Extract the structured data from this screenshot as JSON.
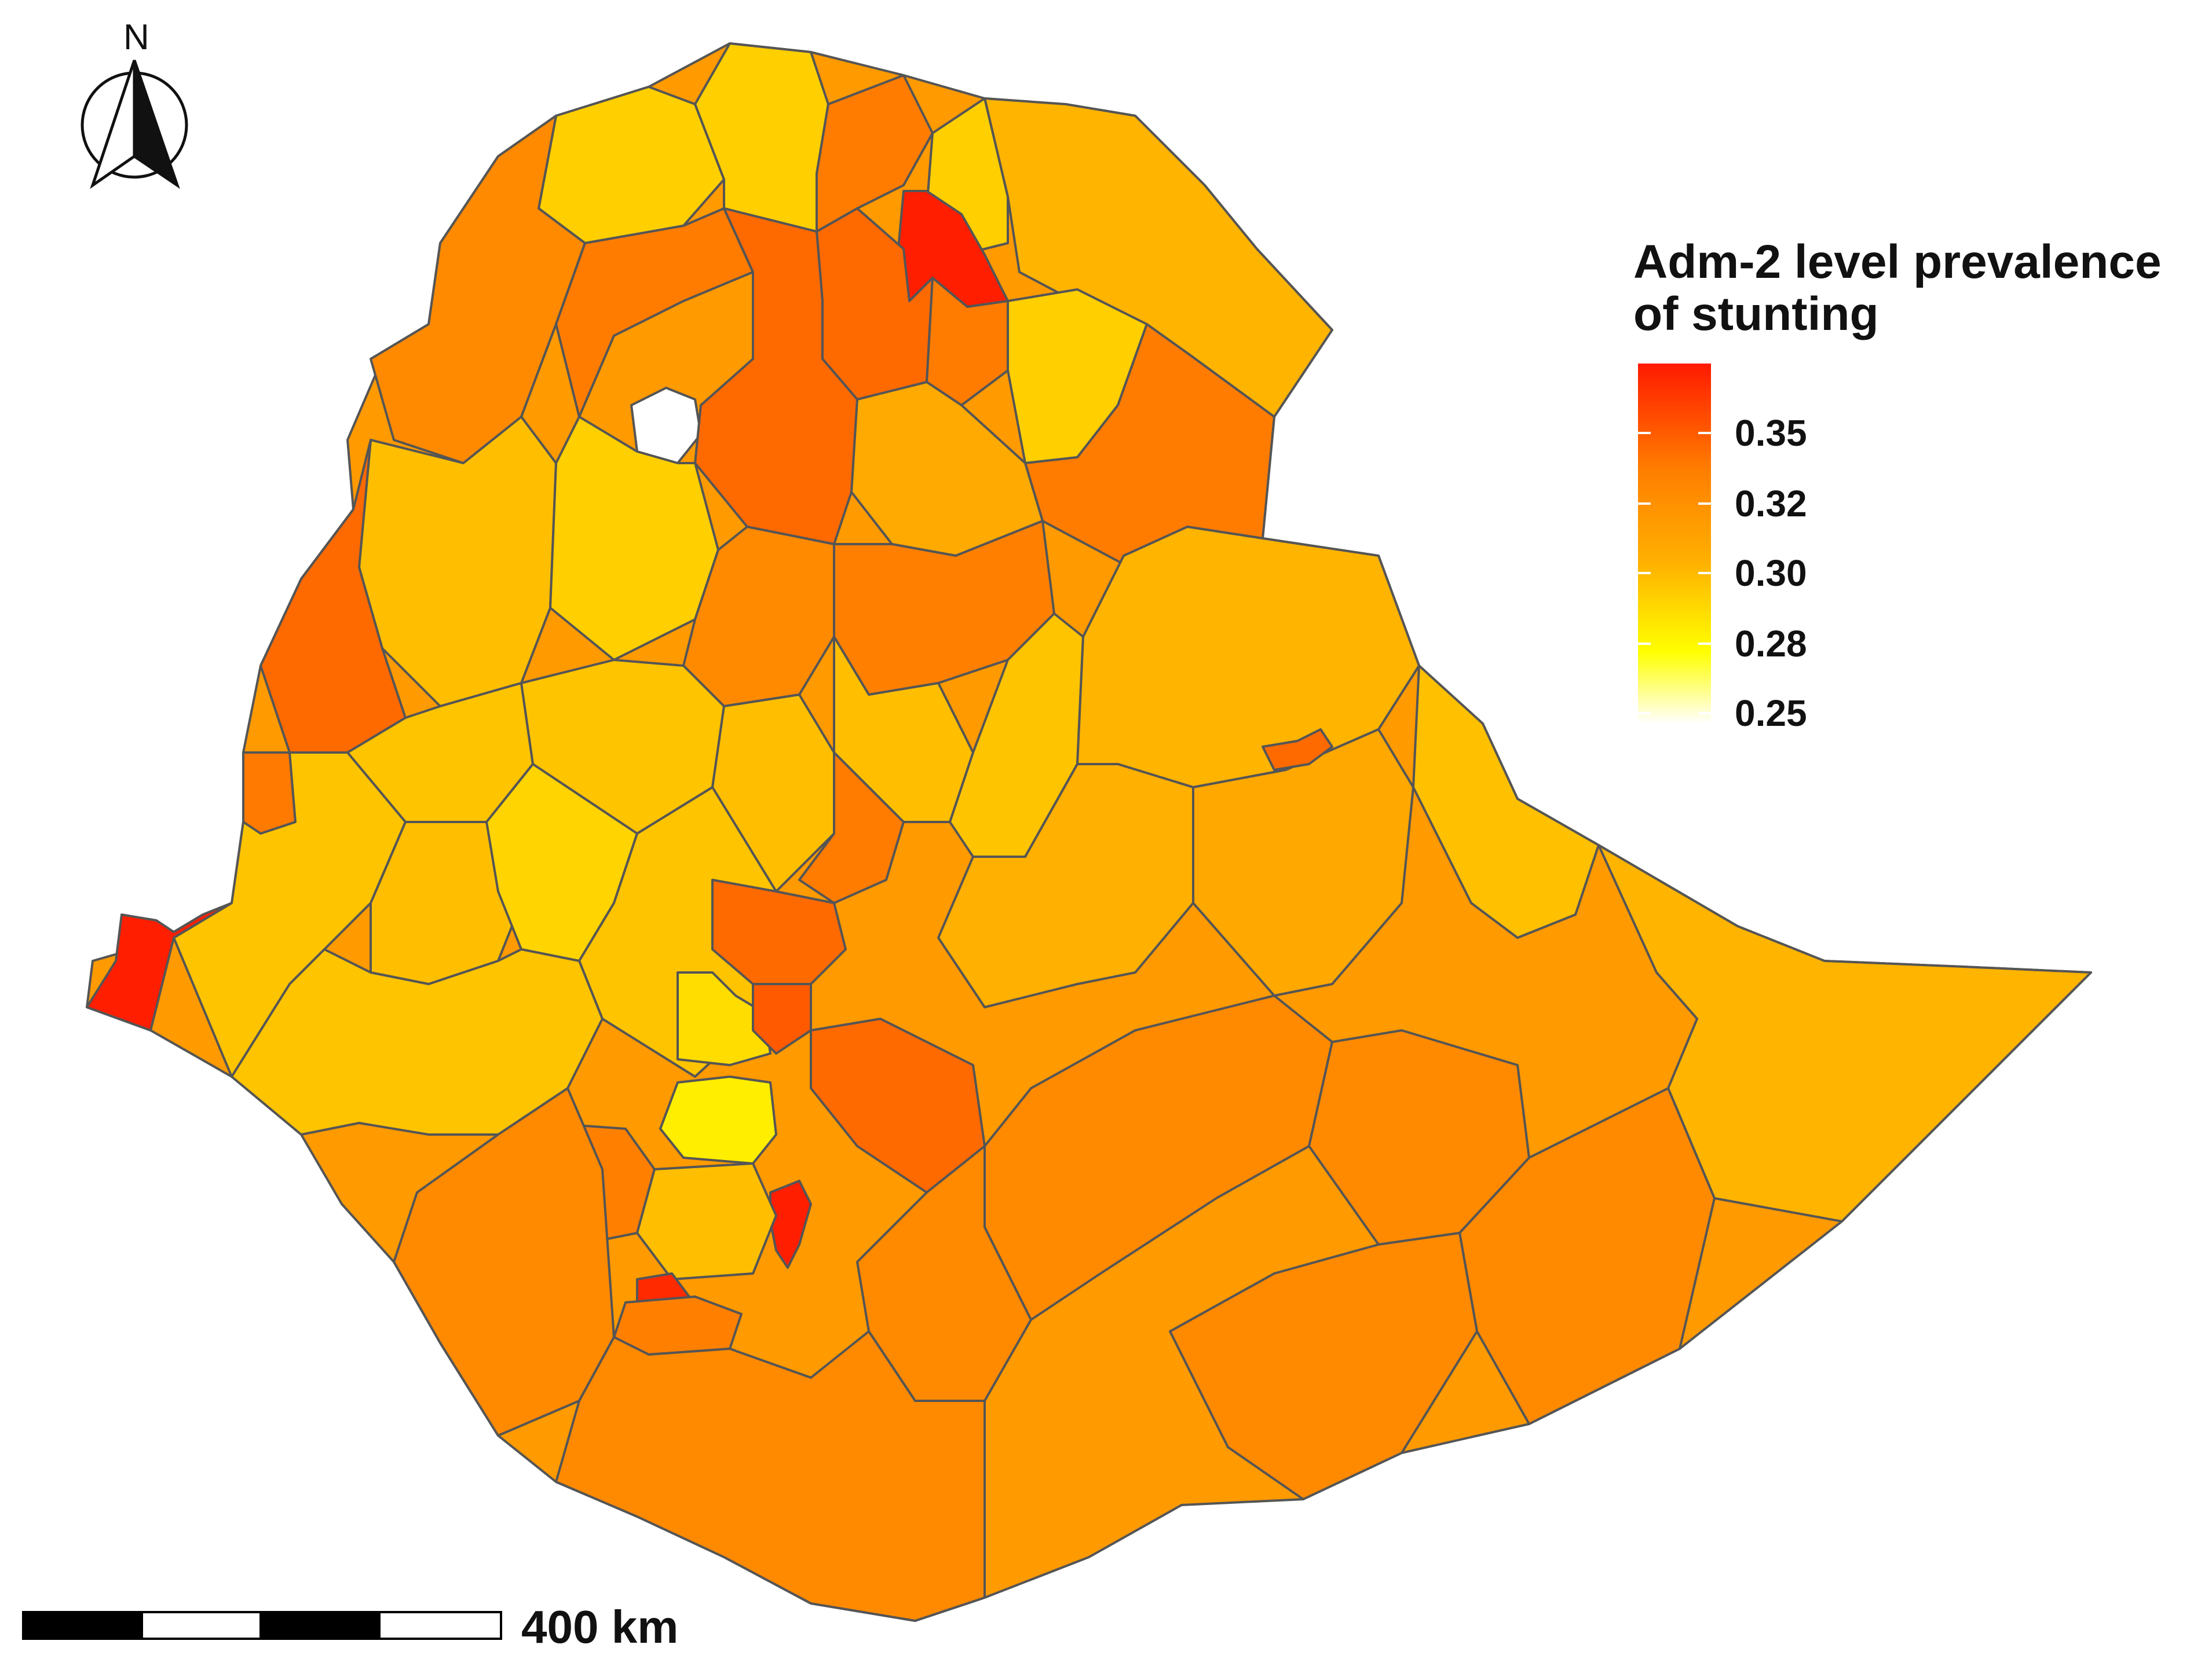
{
  "legend": {
    "title_line1": "Adm-2 level prevalence",
    "title_line2": " of stunting",
    "ticks": [
      "0.35",
      "0.32",
      "0.30",
      "0.28",
      "0.25"
    ],
    "colors": {
      "high": "#ff1a00",
      "mid_high": "#ff7f00",
      "mid": "#ffb000",
      "mid_low": "#ffff00",
      "low": "#ffffff"
    }
  },
  "north_arrow": {
    "label": "N"
  },
  "scale_bar": {
    "label": "400 km"
  },
  "palette": {
    "red": "#ff1e00",
    "dark_orange": "#ff6a00",
    "orange": "#ff9a00",
    "light_orange": "#ffb400",
    "gold": "#ffcf00",
    "yellow": "#fff200",
    "pale_yellow": "#fffacd",
    "white": "#ffffff",
    "border": "#555555"
  }
}
